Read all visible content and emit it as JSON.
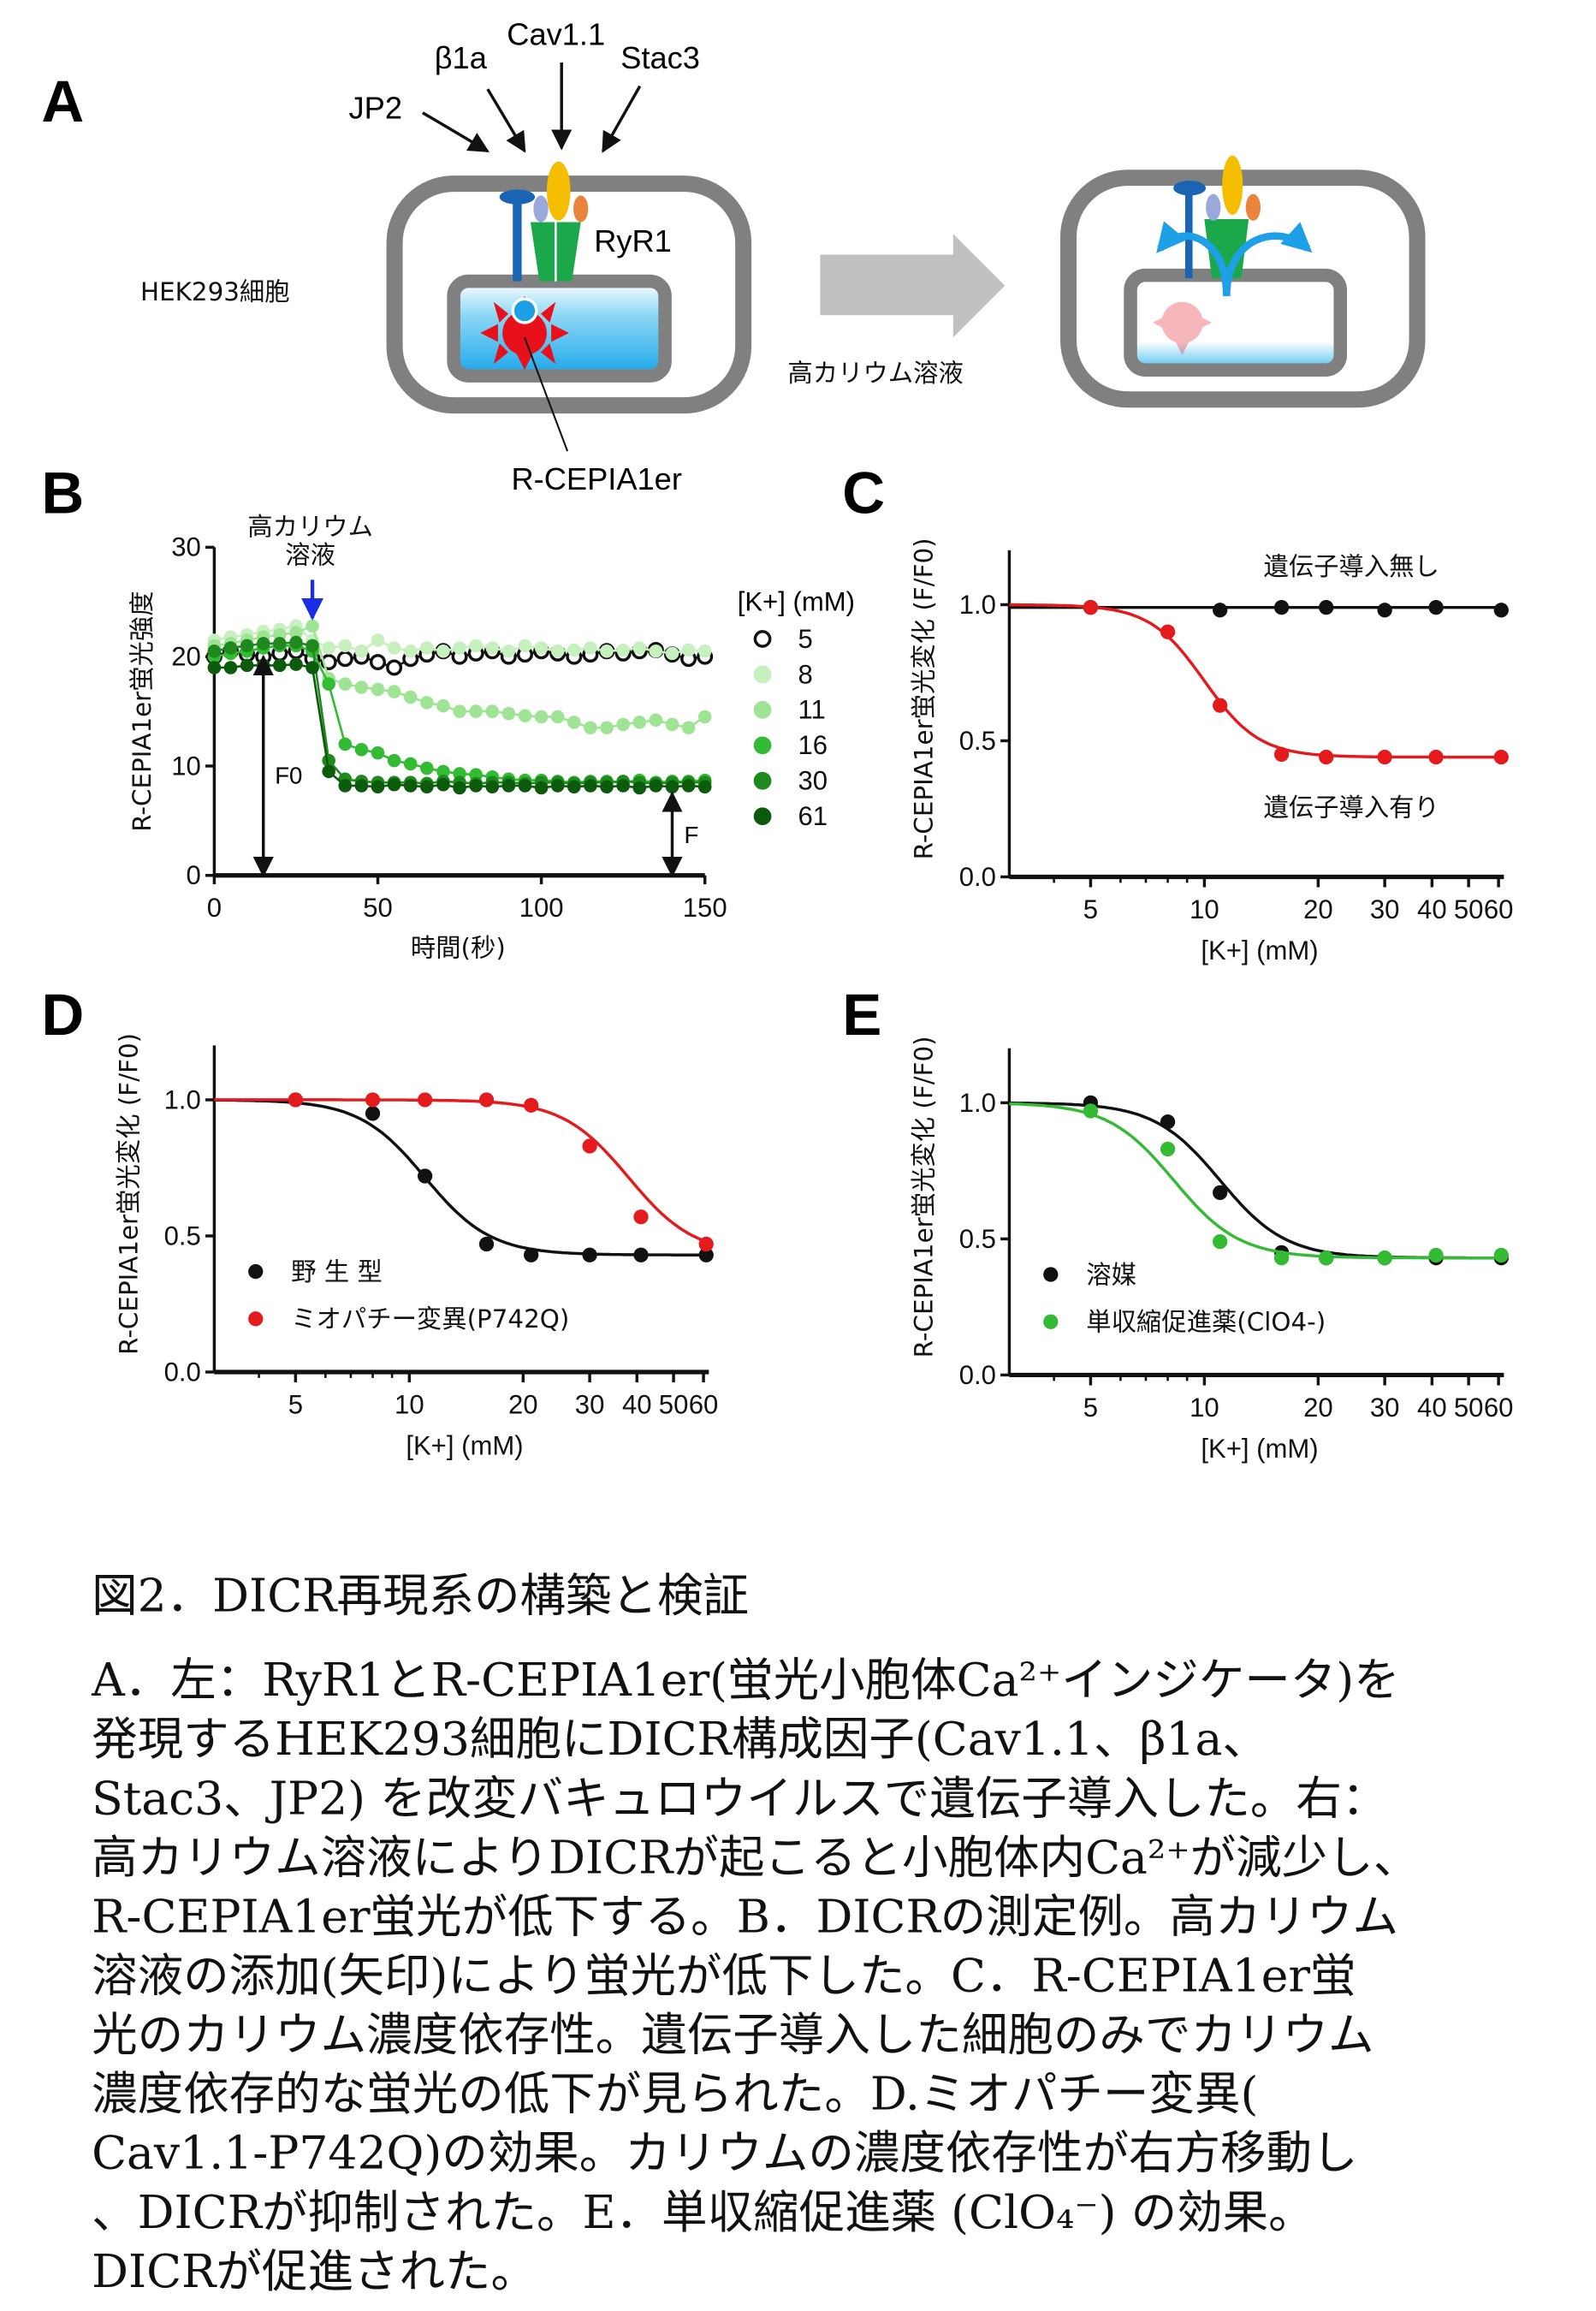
{
  "panel_labels": {
    "A": "A",
    "B": "B",
    "C": "C",
    "D": "D",
    "E": "E"
  },
  "diagram_a": {
    "cell_label": "HEK293細胞",
    "factors": [
      "JP2",
      "β1a",
      "Cav1.1",
      "Stac3"
    ],
    "ryr_label": "RyR1",
    "indicator_label": "R-CEPIA1er",
    "stimulus_label": "高カリウム溶液",
    "colors": {
      "cell_membrane": "#808080",
      "er_lumen": "#22aaee",
      "indicator": "#e8101a",
      "ryr1": "#1aa84a",
      "jp2": "#1a64b4",
      "cav11": "#f5be00",
      "beta1a": "#9aa8dc",
      "stac3": "#e8843c",
      "calcium_flow": "#1ea0e6"
    }
  },
  "chart_data": [
    {
      "id": "B",
      "type": "line",
      "ylabel": "R-CEPIA1er蛍光強度",
      "xlabel": "時間(秒)",
      "xlim": [
        0,
        150
      ],
      "ylim": [
        0,
        30
      ],
      "xticks": [
        "0",
        "50",
        "100",
        "150"
      ],
      "yticks": [
        "0",
        "10",
        "20",
        "30"
      ],
      "annotation": [
        "高カリウム",
        "溶液"
      ],
      "f0_label": "F0",
      "f_label": "F",
      "legend_title": "[K+] (mM)",
      "legend_placement": "right",
      "x": [
        0,
        5,
        10,
        15,
        20,
        25,
        30,
        35,
        40,
        45,
        50,
        55,
        60,
        65,
        70,
        75,
        80,
        85,
        90,
        95,
        100,
        105,
        110,
        115,
        120,
        125,
        130,
        135,
        140,
        145,
        150
      ],
      "series": [
        {
          "name": "5",
          "color": "#111111",
          "marker": "open-circle",
          "values": [
            20,
            20.5,
            20.2,
            20,
            20.3,
            20.5,
            19.8,
            19.5,
            19.8,
            20,
            19.5,
            19,
            19.8,
            20.2,
            20.5,
            20,
            20.3,
            20.5,
            20,
            20.2,
            20.5,
            20.3,
            20,
            20.2,
            20.5,
            20.3,
            20.5,
            20.6,
            20.2,
            19.8,
            20
          ]
        },
        {
          "name": "8",
          "color": "#c6f0be",
          "marker": "filled-circle",
          "values": [
            21.5,
            21.8,
            22,
            22.3,
            22.5,
            22.8,
            21.5,
            20.8,
            21,
            20.5,
            21.5,
            20.8,
            20.5,
            20.8,
            20.5,
            20.8,
            21,
            20.8,
            20.5,
            21,
            20.8,
            20.5,
            20.6,
            20.8,
            20.5,
            20.6,
            20.8,
            20.5,
            20.3,
            20.6,
            20.5
          ]
        },
        {
          "name": "11",
          "color": "#9ee494",
          "marker": "filled-circle",
          "values": [
            21,
            21.2,
            21.5,
            21.8,
            22,
            22.2,
            22.8,
            18,
            17.5,
            17.2,
            17,
            16.8,
            16.3,
            15.8,
            15.5,
            15,
            15,
            15,
            14.8,
            14.6,
            14.5,
            14.5,
            14,
            13.5,
            13.5,
            13.8,
            14,
            14.2,
            13.8,
            13.5,
            14.5
          ]
        },
        {
          "name": "16",
          "color": "#33bb33",
          "marker": "filled-circle",
          "values": [
            20,
            20.3,
            20.5,
            20.8,
            21,
            21,
            20.5,
            17.5,
            12,
            11.5,
            11.2,
            10.5,
            10.2,
            9.8,
            9.5,
            9.3,
            9.2,
            9,
            8.8,
            8.7,
            8.7,
            8.6,
            8.5,
            8.6,
            8.6,
            8.5,
            8.7,
            8.5,
            8.6,
            8.6,
            8.7
          ]
        },
        {
          "name": "30",
          "color": "#1e8a1e",
          "marker": "filled-circle",
          "values": [
            20.5,
            20.8,
            21,
            21.2,
            21.2,
            21.3,
            21,
            10.5,
            8.8,
            8.6,
            8.5,
            8.5,
            8.5,
            8.4,
            8.6,
            8.5,
            8.4,
            8.5,
            8.5,
            8.4,
            8.5,
            8.5,
            8.4,
            8.5,
            8.5,
            8.6,
            8.5,
            8.4,
            8.5,
            8.5,
            8.5
          ]
        },
        {
          "name": "61",
          "color": "#0c5a0c",
          "marker": "filled-circle",
          "values": [
            19,
            19,
            19.2,
            19.2,
            19.2,
            19.3,
            19,
            9.5,
            8.2,
            8.2,
            8.1,
            8.3,
            8.2,
            8.1,
            8.3,
            8,
            8.2,
            8.1,
            8.2,
            8.2,
            8,
            8.2,
            8.1,
            8.2,
            8.1,
            8.2,
            8,
            8.2,
            8.1,
            8.2,
            8.1
          ]
        }
      ],
      "stimulus_time": 30
    },
    {
      "id": "C",
      "type": "scatter",
      "ylabel": "R-CEPIA1er蛍光変化 (F/F0)",
      "xlabel": "[K+] (mM)",
      "xscale": "log",
      "xlim": [
        3,
        62
      ],
      "ylim": [
        0,
        1.2
      ],
      "xticks": [
        "5",
        "10",
        "20",
        "30",
        "40",
        "50",
        "60"
      ],
      "yticks": [
        "0.0",
        "0.5",
        "1.0"
      ],
      "legend_placement": "inline",
      "x": [
        5,
        8,
        11,
        16,
        21,
        30,
        41,
        61
      ],
      "series": [
        {
          "name": "遺伝子導入無し",
          "color": "#111111",
          "values": [
            0.99,
            null,
            0.98,
            0.99,
            0.99,
            0.98,
            0.99,
            0.98
          ]
        },
        {
          "name": "遺伝子導入有り",
          "color": "#e41a1c",
          "values": [
            0.99,
            0.9,
            0.63,
            0.45,
            0.44,
            0.44,
            0.44,
            0.44
          ]
        }
      ]
    },
    {
      "id": "D",
      "type": "scatter",
      "ylabel": "R-CEPIA1er蛍光変化 (F/F0)",
      "xlabel": "[K+] (mM)",
      "xscale": "log",
      "xlim": [
        3,
        62
      ],
      "ylim": [
        0,
        1.2
      ],
      "xticks": [
        "5",
        "10",
        "20",
        "30",
        "40",
        "50",
        "60"
      ],
      "yticks": [
        "0.0",
        "0.5",
        "1.0"
      ],
      "legend_placement": "bottom-left",
      "x": [
        5,
        8,
        11,
        16,
        21,
        30,
        41,
        61
      ],
      "series": [
        {
          "name": "野 生 型",
          "color": "#111111",
          "values": [
            1.0,
            0.95,
            0.72,
            0.47,
            0.43,
            0.43,
            0.43,
            0.43
          ]
        },
        {
          "name": "ミオパチー変異(P742Q)",
          "color": "#e41a1c",
          "values": [
            1.0,
            1.0,
            1.0,
            1.0,
            0.98,
            0.83,
            0.57,
            0.47
          ]
        }
      ]
    },
    {
      "id": "E",
      "type": "scatter",
      "ylabel": "R-CEPIA1er蛍光変化 (F/F0)",
      "xlabel": "[K+] (mM)",
      "xscale": "log",
      "xlim": [
        3,
        62
      ],
      "ylim": [
        0,
        1.2
      ],
      "xticks": [
        "5",
        "10",
        "20",
        "30",
        "40",
        "50",
        "60"
      ],
      "yticks": [
        "0.0",
        "0.5",
        "1.0"
      ],
      "legend_placement": "bottom-left",
      "x": [
        5,
        8,
        11,
        16,
        21,
        30,
        41,
        61
      ],
      "series": [
        {
          "name": "溶媒",
          "color": "#111111",
          "values": [
            1.0,
            0.93,
            0.67,
            0.45,
            0.43,
            0.43,
            0.43,
            0.43
          ]
        },
        {
          "name": "単収縮促進薬(ClO4-)",
          "color": "#33bb33",
          "values": [
            0.97,
            0.83,
            0.49,
            0.43,
            0.43,
            0.43,
            0.44,
            0.44
          ]
        }
      ]
    }
  ],
  "caption": {
    "title": "図2．DICR再現系の構築と検証",
    "lines": [
      "A．左：RyR1とR-CEPIA1er(蛍光小胞体Ca²⁺インジケータ)を",
      "発現するHEK293細胞にDICR構成因子(Cav1.1、β1a、",
      "Stac3、JP2) を改変バキュロウイルスで遺伝子導入した。右：",
      "高カリウム溶液によりDICRが起こると小胞体内Ca²⁺が減少し、",
      "R-CEPIA1er蛍光が低下する。B．DICRの測定例。高カリウム",
      "溶液の添加(矢印)により蛍光が低下した。C．R-CEPIA1er蛍",
      "光のカリウム濃度依存性。遺伝子導入した細胞のみでカリウム",
      "濃度依存的な蛍光の低下が見られた。D.ミオパチー変異(",
      "Cav1.1-P742Q)の効果。カリウムの濃度依存性が右方移動し",
      "、DICRが抑制された。E．単収縮促進薬 (ClO₄⁻) の効果。",
      "DICRが促進された。"
    ]
  }
}
